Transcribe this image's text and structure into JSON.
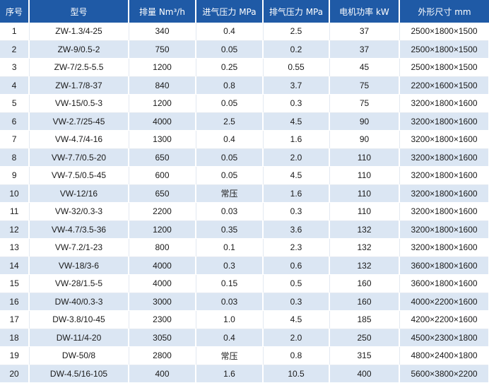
{
  "table": {
    "headers": [
      "序号",
      "型号",
      "排量 Nm³/h",
      "进气压力 MPa",
      "排气压力 MPa",
      "电机功率 kW",
      "外形尺寸 mm"
    ],
    "rows": [
      [
        "1",
        "ZW-1.3/4-25",
        "340",
        "0.4",
        "2.5",
        "37",
        "2500×1800×1500"
      ],
      [
        "2",
        "ZW-9/0.5-2",
        "750",
        "0.05",
        "0.2",
        "37",
        "2500×1800×1500"
      ],
      [
        "3",
        "ZW-7/2.5-5.5",
        "1200",
        "0.25",
        "0.55",
        "45",
        "2500×1800×1500"
      ],
      [
        "4",
        "ZW-1.7/8-37",
        "840",
        "0.8",
        "3.7",
        "75",
        "2200×1600×1500"
      ],
      [
        "5",
        "VW-15/0.5-3",
        "1200",
        "0.05",
        "0.3",
        "75",
        "3200×1800×1600"
      ],
      [
        "6",
        "VW-2.7/25-45",
        "4000",
        "2.5",
        "4.5",
        "90",
        "3200×1800×1600"
      ],
      [
        "7",
        "VW-4.7/4-16",
        "1300",
        "0.4",
        "1.6",
        "90",
        "3200×1800×1600"
      ],
      [
        "8",
        "VW-7.7/0.5-20",
        "650",
        "0.05",
        "2.0",
        "110",
        "3200×1800×1600"
      ],
      [
        "9",
        "VW-7.5/0.5-45",
        "600",
        "0.05",
        "4.5",
        "110",
        "3200×1800×1600"
      ],
      [
        "10",
        "VW-12/16",
        "650",
        "常压",
        "1.6",
        "110",
        "3200×1800×1600"
      ],
      [
        "11",
        "VW-32/0.3-3",
        "2200",
        "0.03",
        "0.3",
        "110",
        "3200×1800×1600"
      ],
      [
        "12",
        "VW-4.7/3.5-36",
        "1200",
        "0.35",
        "3.6",
        "132",
        "3200×1800×1600"
      ],
      [
        "13",
        "VW-7.2/1-23",
        "800",
        "0.1",
        "2.3",
        "132",
        "3200×1800×1600"
      ],
      [
        "14",
        "VW-18/3-6",
        "4000",
        "0.3",
        "0.6",
        "132",
        "3600×1800×1600"
      ],
      [
        "15",
        "VW-28/1.5-5",
        "4000",
        "0.15",
        "0.5",
        "160",
        "3600×1800×1600"
      ],
      [
        "16",
        "DW-40/0.3-3",
        "3000",
        "0.03",
        "0.3",
        "160",
        "4000×2200×1600"
      ],
      [
        "17",
        "DW-3.8/10-45",
        "2300",
        "1.0",
        "4.5",
        "185",
        "4200×2200×1600"
      ],
      [
        "18",
        "DW-11/4-20",
        "3050",
        "0.4",
        "2.0",
        "250",
        "4500×2300×1800"
      ],
      [
        "19",
        "DW-50/8",
        "2800",
        "常压",
        "0.8",
        "315",
        "4800×2400×1800"
      ],
      [
        "20",
        "DW-4.5/16-105",
        "400",
        "1.6",
        "10.5",
        "400",
        "5600×3800×2200"
      ]
    ]
  },
  "colors": {
    "header_bg": "#1f5aa6",
    "header_text": "#ffffff",
    "stripe_bg": "#dbe6f3",
    "row_bg": "#ffffff"
  }
}
